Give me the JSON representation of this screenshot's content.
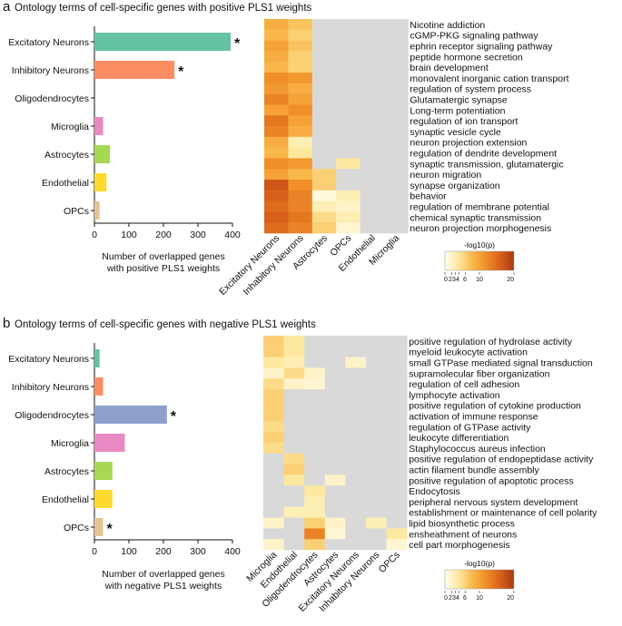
{
  "colorscale": {
    "title": "-log10(p)",
    "ticks": [
      0,
      2,
      3,
      4,
      6,
      10,
      20
    ],
    "tick_labels": [
      "0",
      "2",
      "3",
      "4",
      "6",
      "10",
      "20"
    ],
    "stops": [
      "#fefef0",
      "#fde8a0",
      "#f9b74a",
      "#f08f28",
      "#d8601a",
      "#a83a12"
    ],
    "na_color": "#d9d9d9"
  },
  "chart_data": [
    {
      "panel": "a",
      "type": "bar",
      "orientation": "horizontal",
      "title": "Ontology terms of cell-specific genes with positive PLS1 weights",
      "xlabel_lines": [
        "Number of overlapped genes",
        "with positive PLS1 weights"
      ],
      "xlim": [
        0,
        400
      ],
      "xticks": [
        0,
        100,
        200,
        300,
        400
      ],
      "categories": [
        "Excitatory Neurons",
        "Inhibitory Neurons",
        "Oligodendrocytes",
        "Microglia",
        "Astrocytes",
        "Endothelial",
        "OPCs"
      ],
      "values": [
        395,
        232,
        0,
        25,
        45,
        35,
        15
      ],
      "colors": [
        "#66c2a5",
        "#fc8d62",
        "#8da0cb",
        "#e78ac3",
        "#a6d854",
        "#ffd92f",
        "#e5c494"
      ],
      "significance": [
        "*",
        "*",
        "",
        "",
        "",
        "",
        ""
      ]
    },
    {
      "panel": "a",
      "type": "heatmap",
      "columns": [
        "Excitatory Neurons",
        "Inhabitory Neurons",
        "Astrocytes",
        "OPCs",
        "Endothelial",
        "Microglia"
      ],
      "rows": [
        "Nicotine addiction",
        "cGMP-PKG signaling pathway",
        "ephrin receptor signaling pathway",
        "peptide hormone secretion",
        "brain development",
        "monovalent inorganic cation transport",
        "regulation of system process",
        "Glutamatergic synapse",
        "Long-term potentiation",
        "regulation of ion transport",
        "synaptic vesicle cycle",
        "neuron projection extension",
        "regulation of dendrite development",
        "synaptic transmission, glutamatergic",
        "neuron migration",
        "synapse organization",
        "behavior",
        "regulation of membrane potential",
        "chemical synaptic transmission",
        "neuron projection morphogenesis"
      ],
      "values": [
        [
          9,
          7,
          null,
          null,
          null,
          null
        ],
        [
          8,
          6,
          null,
          null,
          null,
          null
        ],
        [
          10,
          7,
          null,
          null,
          null,
          null
        ],
        [
          9,
          6,
          null,
          null,
          null,
          null
        ],
        [
          8,
          6,
          null,
          null,
          null,
          null
        ],
        [
          12,
          11,
          null,
          null,
          null,
          null
        ],
        [
          11,
          9,
          null,
          null,
          null,
          null
        ],
        [
          13,
          10,
          null,
          null,
          null,
          null
        ],
        [
          10,
          12,
          null,
          null,
          null,
          null
        ],
        [
          14,
          10,
          null,
          null,
          null,
          null
        ],
        [
          13,
          9,
          null,
          null,
          null,
          null
        ],
        [
          9,
          3,
          null,
          null,
          null,
          null
        ],
        [
          8,
          4,
          null,
          null,
          null,
          null
        ],
        [
          12,
          11,
          null,
          4,
          null,
          null
        ],
        [
          10,
          8,
          6,
          null,
          null,
          null
        ],
        [
          17,
          12,
          6,
          null,
          null,
          null
        ],
        [
          16,
          13,
          1,
          3,
          null,
          null
        ],
        [
          15,
          13,
          3,
          2,
          null,
          null
        ],
        [
          16,
          14,
          5,
          3,
          null,
          null
        ],
        [
          15,
          13,
          6,
          1.5,
          null,
          null
        ]
      ]
    },
    {
      "panel": "b",
      "type": "bar",
      "orientation": "horizontal",
      "title": "Ontology terms of cell-specific genes with negative PLS1 weights",
      "xlabel_lines": [
        "Number of overlapped genes",
        "with negative PLS1 weights"
      ],
      "xlim": [
        0,
        400
      ],
      "xticks": [
        0,
        100,
        200,
        300,
        400
      ],
      "categories": [
        "Excitatory Neurons",
        "Inhibitory Neurons",
        "Oligodendrocytes",
        "Microglia",
        "Astrocytes",
        "Endothelial",
        "OPCs"
      ],
      "values": [
        15,
        25,
        210,
        88,
        52,
        52,
        25
      ],
      "colors": [
        "#66c2a5",
        "#fc8d62",
        "#8da0cb",
        "#e78ac3",
        "#a6d854",
        "#ffd92f",
        "#e5c494"
      ],
      "significance": [
        "",
        "",
        "*",
        "",
        "",
        "",
        "*"
      ]
    },
    {
      "panel": "b",
      "type": "heatmap",
      "columns": [
        "Microglia",
        "Endothelial",
        "Oligodendrocytes",
        "Astrocytes",
        "Excitatory Neurons",
        "Inhabitory Neurons",
        "OPCs"
      ],
      "rows": [
        "positive regulation of hydrolase activity",
        "myeloid leukocyte activation",
        "small GTPase mediated signal transduction",
        "supramolecular fiber organization",
        "regulation of cell adhesion",
        "lymphocyte activation",
        "positive regulation of cytokine production",
        "activation of immune response",
        "regulation of GTPase activity",
        "leukocyte differentiation",
        "Staphylococcus aureus infection",
        "positive regulation of endopeptidase activity",
        "actin filament bundle assembly",
        "positive regulation of apoptotic process",
        "Endocytosis",
        "peripheral nervous system development",
        "establishment or maintenance of cell polarity",
        "lipid biosynthetic process",
        "ensheathment of neurons",
        "cell part morphogenesis"
      ],
      "values": [
        [
          6,
          4,
          null,
          null,
          null,
          null,
          null
        ],
        [
          6,
          4,
          null,
          null,
          null,
          null,
          null
        ],
        [
          4,
          3,
          null,
          null,
          2,
          null,
          null
        ],
        [
          2,
          5,
          2,
          null,
          null,
          null,
          null
        ],
        [
          5,
          2,
          1.5,
          null,
          null,
          null,
          null
        ],
        [
          6,
          null,
          null,
          null,
          null,
          null,
          null
        ],
        [
          6,
          null,
          null,
          null,
          null,
          null,
          null
        ],
        [
          6,
          null,
          null,
          null,
          null,
          null,
          null
        ],
        [
          5,
          null,
          null,
          null,
          null,
          null,
          null
        ],
        [
          6,
          null,
          null,
          null,
          null,
          null,
          null
        ],
        [
          5,
          null,
          null,
          null,
          null,
          null,
          null
        ],
        [
          null,
          5,
          null,
          null,
          null,
          null,
          null
        ],
        [
          null,
          6,
          null,
          null,
          null,
          null,
          null
        ],
        [
          null,
          4,
          null,
          2,
          null,
          null,
          null
        ],
        [
          null,
          null,
          4,
          null,
          null,
          null,
          null
        ],
        [
          null,
          null,
          3,
          null,
          null,
          null,
          null
        ],
        [
          null,
          3,
          3,
          null,
          null,
          null,
          null
        ],
        [
          2,
          null,
          6,
          2,
          null,
          3,
          null
        ],
        [
          null,
          null,
          13,
          1.5,
          null,
          null,
          4
        ],
        [
          2,
          null,
          6,
          null,
          null,
          null,
          1.5
        ]
      ]
    }
  ]
}
